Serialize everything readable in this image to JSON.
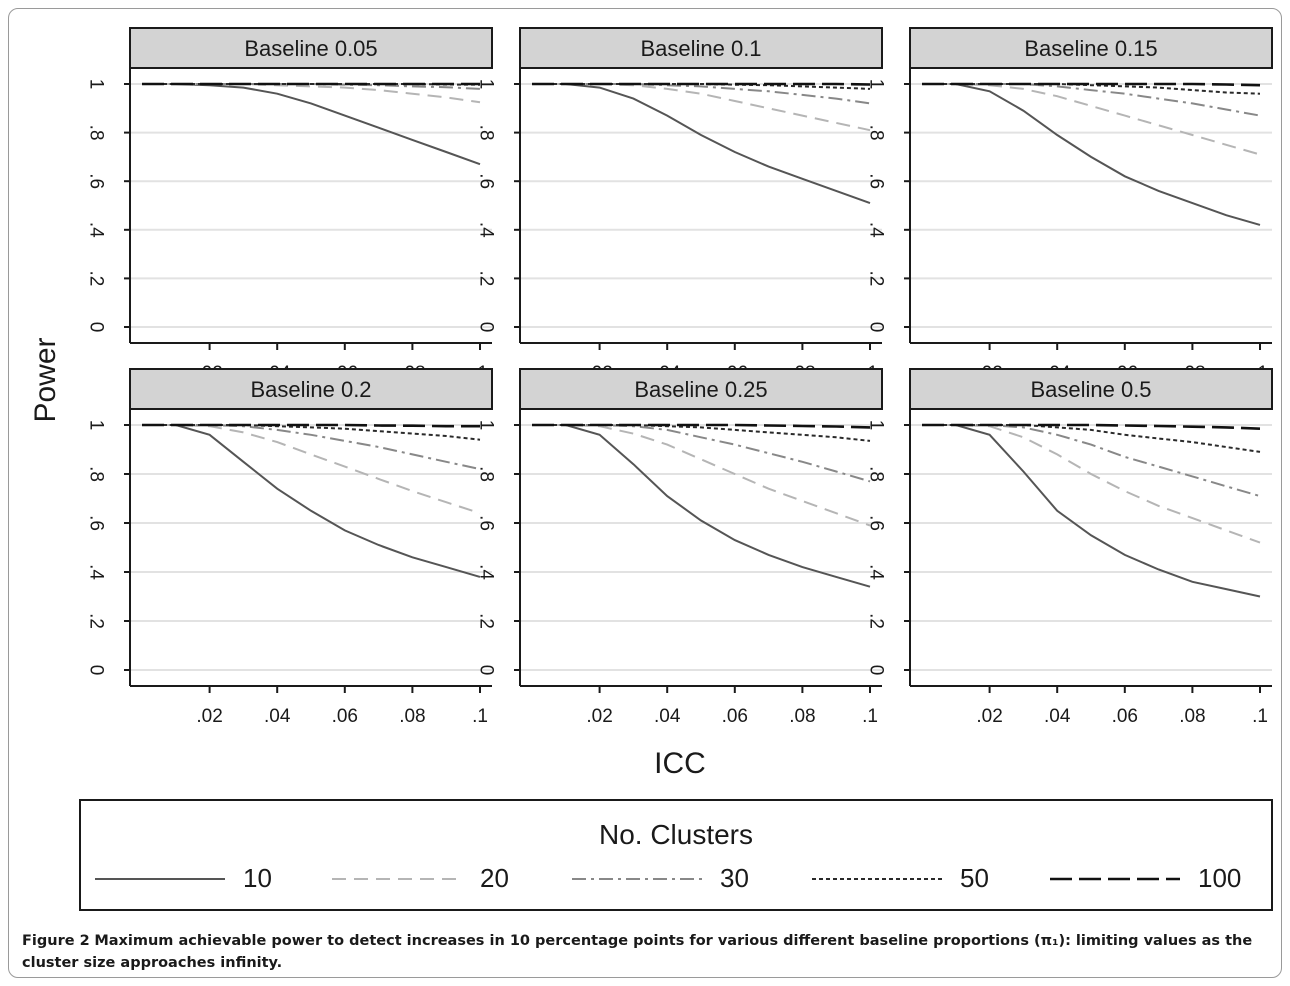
{
  "chart_data": {
    "type": "line",
    "facet_label_prefix": "Baseline ",
    "panels": [
      "0.05",
      "0.1",
      "0.15",
      "0.2",
      "0.25",
      "0.5"
    ],
    "xlabel": "ICC",
    "ylabel": "Power",
    "xlim": [
      0.0,
      0.1
    ],
    "ylim": [
      0,
      1
    ],
    "x_ticks": [
      0.02,
      0.04,
      0.06,
      0.08,
      0.1
    ],
    "x_tick_labels": [
      ".02",
      ".04",
      ".06",
      ".08",
      ".1"
    ],
    "y_ticks": [
      0,
      0.2,
      0.4,
      0.6,
      0.8,
      1
    ],
    "y_tick_labels": [
      "0",
      ".2",
      ".4",
      ".6",
      ".8",
      "1"
    ],
    "grid": true,
    "legend": {
      "title": "No. Clusters",
      "placement": "bottom",
      "entries": [
        "10",
        "20",
        "30",
        "50",
        "100"
      ]
    },
    "x": [
      0.0,
      0.01,
      0.02,
      0.03,
      0.04,
      0.05,
      0.06,
      0.07,
      0.08,
      0.09,
      0.1
    ],
    "series_by_panel": [
      [
        {
          "name": "10",
          "values": [
            1.0,
            1.0,
            0.995,
            0.985,
            0.96,
            0.92,
            0.87,
            0.82,
            0.77,
            0.72,
            0.67
          ]
        },
        {
          "name": "20",
          "values": [
            1.0,
            1.0,
            1.0,
            1.0,
            0.995,
            0.99,
            0.985,
            0.975,
            0.96,
            0.945,
            0.925
          ]
        },
        {
          "name": "30",
          "values": [
            1.0,
            1.0,
            1.0,
            1.0,
            1.0,
            1.0,
            0.997,
            0.995,
            0.99,
            0.987,
            0.98
          ]
        },
        {
          "name": "50",
          "values": [
            1.0,
            1.0,
            1.0,
            1.0,
            1.0,
            1.0,
            1.0,
            1.0,
            1.0,
            0.998,
            0.997
          ]
        },
        {
          "name": "100",
          "values": [
            1.0,
            1.0,
            1.0,
            1.0,
            1.0,
            1.0,
            1.0,
            1.0,
            1.0,
            1.0,
            1.0
          ]
        }
      ],
      [
        {
          "name": "10",
          "values": [
            1.0,
            1.0,
            0.985,
            0.94,
            0.87,
            0.79,
            0.72,
            0.66,
            0.61,
            0.56,
            0.51
          ]
        },
        {
          "name": "20",
          "values": [
            1.0,
            1.0,
            1.0,
            0.995,
            0.98,
            0.96,
            0.93,
            0.9,
            0.87,
            0.84,
            0.81
          ]
        },
        {
          "name": "30",
          "values": [
            1.0,
            1.0,
            1.0,
            1.0,
            0.995,
            0.99,
            0.98,
            0.97,
            0.955,
            0.94,
            0.92
          ]
        },
        {
          "name": "50",
          "values": [
            1.0,
            1.0,
            1.0,
            1.0,
            1.0,
            1.0,
            0.997,
            0.995,
            0.99,
            0.985,
            0.98
          ]
        },
        {
          "name": "100",
          "values": [
            1.0,
            1.0,
            1.0,
            1.0,
            1.0,
            1.0,
            1.0,
            1.0,
            1.0,
            1.0,
            0.998
          ]
        }
      ],
      [
        {
          "name": "10",
          "values": [
            1.0,
            1.0,
            0.97,
            0.89,
            0.79,
            0.7,
            0.62,
            0.56,
            0.51,
            0.46,
            0.42
          ]
        },
        {
          "name": "20",
          "values": [
            1.0,
            1.0,
            0.995,
            0.98,
            0.95,
            0.91,
            0.87,
            0.83,
            0.79,
            0.75,
            0.71
          ]
        },
        {
          "name": "30",
          "values": [
            1.0,
            1.0,
            1.0,
            1.0,
            0.99,
            0.975,
            0.96,
            0.94,
            0.92,
            0.895,
            0.87
          ]
        },
        {
          "name": "50",
          "values": [
            1.0,
            1.0,
            1.0,
            1.0,
            1.0,
            0.995,
            0.99,
            0.985,
            0.975,
            0.965,
            0.96
          ]
        },
        {
          "name": "100",
          "values": [
            1.0,
            1.0,
            1.0,
            1.0,
            1.0,
            1.0,
            1.0,
            1.0,
            1.0,
            0.998,
            0.995
          ]
        }
      ],
      [
        {
          "name": "10",
          "values": [
            1.0,
            1.0,
            0.96,
            0.85,
            0.74,
            0.65,
            0.57,
            0.51,
            0.46,
            0.42,
            0.38
          ]
        },
        {
          "name": "20",
          "values": [
            1.0,
            1.0,
            0.995,
            0.97,
            0.93,
            0.88,
            0.83,
            0.78,
            0.73,
            0.685,
            0.64
          ]
        },
        {
          "name": "30",
          "values": [
            1.0,
            1.0,
            1.0,
            0.995,
            0.98,
            0.96,
            0.935,
            0.91,
            0.88,
            0.85,
            0.82
          ]
        },
        {
          "name": "50",
          "values": [
            1.0,
            1.0,
            1.0,
            1.0,
            0.995,
            0.99,
            0.985,
            0.975,
            0.965,
            0.955,
            0.94
          ]
        },
        {
          "name": "100",
          "values": [
            1.0,
            1.0,
            1.0,
            1.0,
            1.0,
            1.0,
            1.0,
            0.998,
            0.997,
            0.995,
            0.995
          ]
        }
      ],
      [
        {
          "name": "10",
          "values": [
            1.0,
            1.0,
            0.96,
            0.84,
            0.71,
            0.61,
            0.53,
            0.47,
            0.42,
            0.38,
            0.34
          ]
        },
        {
          "name": "20",
          "values": [
            1.0,
            1.0,
            0.995,
            0.965,
            0.92,
            0.86,
            0.8,
            0.74,
            0.69,
            0.64,
            0.59
          ]
        },
        {
          "name": "30",
          "values": [
            1.0,
            1.0,
            1.0,
            0.995,
            0.98,
            0.95,
            0.92,
            0.885,
            0.85,
            0.81,
            0.77
          ]
        },
        {
          "name": "50",
          "values": [
            1.0,
            1.0,
            1.0,
            1.0,
            0.995,
            0.99,
            0.98,
            0.97,
            0.96,
            0.95,
            0.935
          ]
        },
        {
          "name": "100",
          "values": [
            1.0,
            1.0,
            1.0,
            1.0,
            1.0,
            1.0,
            1.0,
            0.998,
            0.996,
            0.994,
            0.99
          ]
        }
      ],
      [
        {
          "name": "10",
          "values": [
            1.0,
            1.0,
            0.96,
            0.81,
            0.65,
            0.55,
            0.47,
            0.41,
            0.36,
            0.33,
            0.3
          ]
        },
        {
          "name": "20",
          "values": [
            1.0,
            1.0,
            0.995,
            0.95,
            0.88,
            0.8,
            0.73,
            0.67,
            0.62,
            0.57,
            0.52
          ]
        },
        {
          "name": "30",
          "values": [
            1.0,
            1.0,
            1.0,
            0.99,
            0.96,
            0.92,
            0.87,
            0.83,
            0.79,
            0.75,
            0.71
          ]
        },
        {
          "name": "50",
          "values": [
            1.0,
            1.0,
            1.0,
            1.0,
            0.99,
            0.98,
            0.96,
            0.945,
            0.93,
            0.91,
            0.89
          ]
        },
        {
          "name": "100",
          "values": [
            1.0,
            1.0,
            1.0,
            1.0,
            1.0,
            1.0,
            0.998,
            0.996,
            0.993,
            0.99,
            0.985
          ]
        }
      ]
    ],
    "series_styles": [
      {
        "name": "10",
        "color": "#555555",
        "dash": "none"
      },
      {
        "name": "20",
        "color": "#b5b5b5",
        "dash": "14 8"
      },
      {
        "name": "30",
        "color": "#888888",
        "dash": "14 5 3 5"
      },
      {
        "name": "50",
        "color": "#2a2a2a",
        "dash": "4 3"
      },
      {
        "name": "100",
        "color": "#111111",
        "dash": "22 7"
      }
    ],
    "colors": {
      "strip_fill": "#d3d3d3",
      "gridline": "#e2e2e2",
      "axis": "#1a1a1a"
    }
  },
  "caption": {
    "label": "Figure 2",
    "text": "Maximum achievable power to detect increases in 10 percentage points for various different baseline proportions (π₁): limiting values as the cluster size approaches infinity."
  }
}
